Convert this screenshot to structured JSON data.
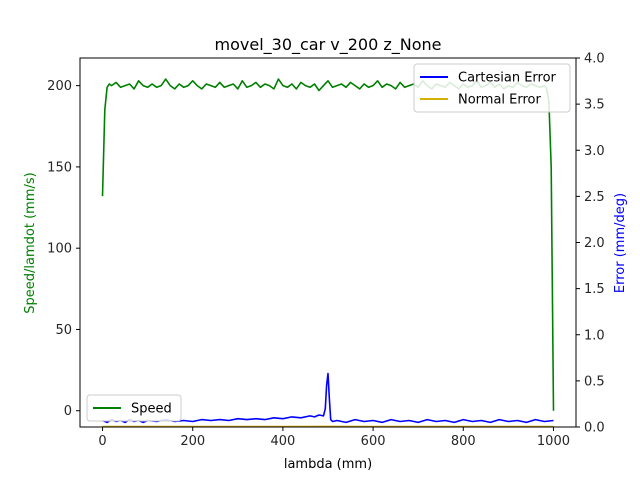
{
  "chart_data": {
    "type": "line",
    "title": "movel_30_car v_200 z_None",
    "xlabel": "lambda (mm)",
    "ylabel_left": "Speed/lamdot (mm/s)",
    "ylabel_right": "Error (mm/deg)",
    "xlim": [
      -50,
      1050
    ],
    "ylim_left": [
      -10,
      217
    ],
    "ylim_right": [
      0,
      4.0
    ],
    "x_ticks": [
      0,
      200,
      400,
      600,
      800,
      1000
    ],
    "y_ticks_left": [
      0,
      50,
      100,
      150,
      200
    ],
    "y_ticks_right": [
      0.0,
      0.5,
      1.0,
      1.5,
      2.0,
      2.5,
      3.0,
      3.5,
      4.0
    ],
    "grid": false,
    "series": [
      {
        "name": "Speed",
        "axis": "left",
        "color": "#008000",
        "x": [
          0,
          5,
          10,
          15,
          20,
          30,
          40,
          50,
          60,
          70,
          80,
          90,
          100,
          110,
          120,
          130,
          140,
          150,
          160,
          170,
          180,
          190,
          200,
          210,
          220,
          230,
          240,
          250,
          260,
          270,
          280,
          290,
          300,
          310,
          320,
          330,
          340,
          350,
          360,
          370,
          380,
          390,
          400,
          410,
          420,
          430,
          440,
          450,
          460,
          470,
          480,
          490,
          500,
          510,
          520,
          530,
          540,
          550,
          560,
          570,
          580,
          590,
          600,
          610,
          620,
          630,
          640,
          650,
          660,
          670,
          680,
          690,
          700,
          710,
          720,
          730,
          740,
          750,
          760,
          770,
          780,
          790,
          800,
          810,
          820,
          830,
          840,
          850,
          860,
          870,
          880,
          890,
          900,
          910,
          920,
          930,
          940,
          950,
          960,
          970,
          980,
          985,
          990,
          995,
          1000
        ],
        "values": [
          132,
          185,
          199,
          201,
          200,
          202,
          199,
          200,
          201,
          198,
          203,
          200,
          199,
          201,
          199,
          200,
          204,
          200,
          198,
          201,
          199,
          200,
          203,
          200,
          198,
          201,
          200,
          199,
          202,
          199,
          200,
          201,
          198,
          203,
          199,
          200,
          202,
          199,
          201,
          200,
          198,
          204,
          200,
          199,
          201,
          198,
          202,
          200,
          199,
          201,
          197,
          200,
          203,
          199,
          200,
          201,
          199,
          202,
          200,
          198,
          201,
          199,
          200,
          203,
          199,
          201,
          200,
          198,
          202,
          199,
          200,
          201,
          199,
          203,
          200,
          198,
          201,
          200,
          199,
          202,
          200,
          198,
          201,
          199,
          200,
          203,
          199,
          200,
          202,
          199,
          201,
          198,
          200,
          199,
          202,
          200,
          199,
          201,
          200,
          199,
          200,
          198,
          190,
          150,
          0
        ]
      },
      {
        "name": "Cartesian Error",
        "axis": "right",
        "color": "#0000ff",
        "x": [
          0,
          10,
          20,
          30,
          40,
          50,
          60,
          70,
          80,
          90,
          100,
          120,
          140,
          160,
          180,
          200,
          220,
          240,
          260,
          280,
          300,
          320,
          340,
          360,
          380,
          400,
          420,
          440,
          460,
          470,
          480,
          490,
          494,
          497,
          500,
          503,
          506,
          510,
          520,
          540,
          560,
          580,
          600,
          620,
          640,
          660,
          680,
          700,
          720,
          740,
          760,
          780,
          800,
          820,
          840,
          860,
          880,
          900,
          920,
          940,
          960,
          980,
          1000
        ],
        "values": [
          0.07,
          0.05,
          0.08,
          0.06,
          0.07,
          0.05,
          0.08,
          0.06,
          0.07,
          0.05,
          0.07,
          0.06,
          0.08,
          0.06,
          0.07,
          0.06,
          0.08,
          0.07,
          0.08,
          0.07,
          0.09,
          0.08,
          0.09,
          0.08,
          0.1,
          0.09,
          0.11,
          0.1,
          0.12,
          0.11,
          0.13,
          0.12,
          0.2,
          0.45,
          0.58,
          0.3,
          0.08,
          0.06,
          0.07,
          0.05,
          0.08,
          0.06,
          0.07,
          0.05,
          0.08,
          0.06,
          0.07,
          0.05,
          0.08,
          0.06,
          0.07,
          0.05,
          0.08,
          0.06,
          0.07,
          0.05,
          0.08,
          0.06,
          0.07,
          0.05,
          0.08,
          0.06,
          0.07
        ]
      },
      {
        "name": "Normal Error",
        "axis": "right",
        "color": "#d4b000",
        "x": [
          0,
          200,
          400,
          500,
          600,
          800,
          1000
        ],
        "values": [
          0.005,
          0.005,
          0.005,
          0.006,
          0.005,
          0.005,
          0.005
        ]
      }
    ],
    "legends": [
      {
        "placement": "upper right",
        "entries": [
          "Cartesian Error",
          "Normal Error"
        ]
      },
      {
        "placement": "lower left",
        "entries": [
          "Speed"
        ]
      }
    ],
    "colors": {
      "ylabel_left": "#008000",
      "ylabel_right": "#0000ff"
    }
  }
}
